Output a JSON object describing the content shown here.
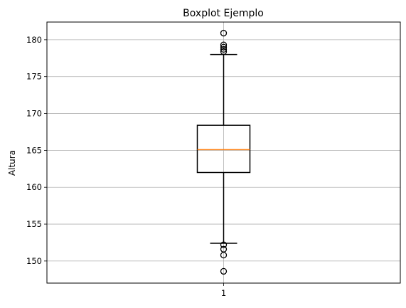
{
  "chart_data": {
    "type": "box",
    "title": "Boxplot Ejemplo",
    "xlabel": "",
    "ylabel": "Altura",
    "categories": [
      "1"
    ],
    "ylim": [
      147,
      182.4
    ],
    "yticks": [
      150,
      155,
      160,
      165,
      170,
      175,
      180
    ],
    "grid": true,
    "boxes": [
      {
        "category": "1",
        "q1": 162.0,
        "median": 165.1,
        "q3": 168.4,
        "whisker_low": 152.4,
        "whisker_high": 178.0,
        "outliers": [
          180.9,
          179.3,
          179.0,
          178.7,
          178.4,
          152.2,
          151.6,
          150.8,
          148.6
        ]
      }
    ],
    "colors": {
      "box": "#000000",
      "median": "#ff7f0e",
      "grid": "#b0b0b0"
    }
  }
}
